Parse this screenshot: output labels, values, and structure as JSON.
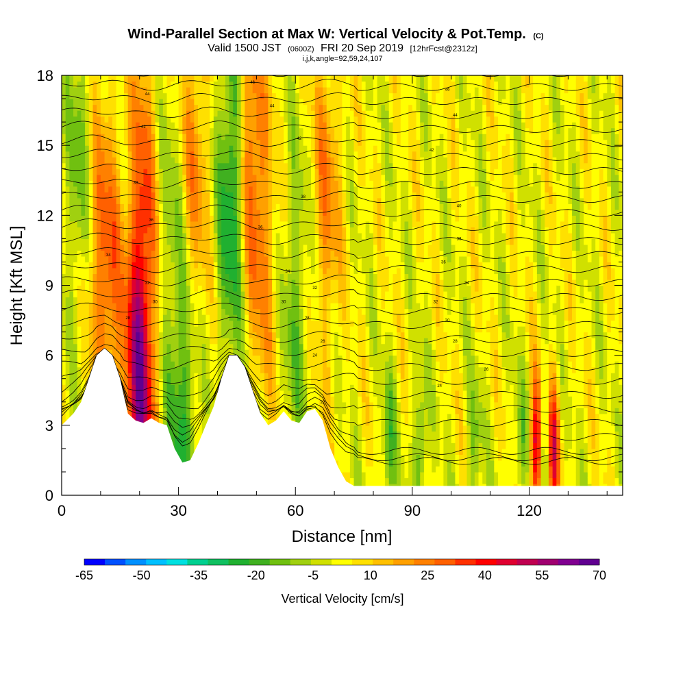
{
  "chart_data": {
    "type": "heatmap",
    "title": "Wind-Parallel Section at Max W: Vertical Velocity & Pot.Temp.",
    "title_units": "(C)",
    "subtitle_main": "Valid 1500 JST",
    "subtitle_utc": "(0600Z)",
    "subtitle_date": "FRI 20 Sep 2019",
    "subtitle_fcst": "[12hrFcst@2312z]",
    "subtitle2": "i,j,k,angle=92,59,24,107",
    "xlabel": "Distance [nm]",
    "ylabel": "Height [Kft MSL]",
    "xlim": [
      0,
      144
    ],
    "ylim": [
      0,
      18
    ],
    "x_ticks": [
      "0",
      "30",
      "60",
      "90",
      "120"
    ],
    "y_ticks": [
      "0",
      "3",
      "6",
      "9",
      "12",
      "15",
      "18"
    ],
    "colorbar_label": "Vertical Velocity [cm/s]",
    "colorbar_ticks": [
      "-65",
      "-50",
      "-35",
      "-20",
      "-5",
      "10",
      "25",
      "40",
      "55",
      "70"
    ],
    "colorbar_colors": [
      "#0000ff",
      "#0050ff",
      "#0090ff",
      "#00c0ff",
      "#00e0e0",
      "#00d090",
      "#10c060",
      "#20b030",
      "#40b020",
      "#70c010",
      "#a0d010",
      "#d0e000",
      "#ffff00",
      "#ffe000",
      "#ffc000",
      "#ffa000",
      "#ff8000",
      "#ff6000",
      "#ff3000",
      "#ff0000",
      "#e00030",
      "#c00050",
      "#a00070",
      "#800090",
      "#600090"
    ],
    "terrain": [
      [
        0,
        3
      ],
      [
        3,
        3.5
      ],
      [
        5,
        4
      ],
      [
        7,
        5
      ],
      [
        9,
        6
      ],
      [
        11,
        6.3
      ],
      [
        13,
        6
      ],
      [
        15,
        5
      ],
      [
        17,
        3.5
      ],
      [
        19,
        3.2
      ],
      [
        21,
        3.1
      ],
      [
        23,
        3.3
      ],
      [
        25,
        3.1
      ],
      [
        27,
        3
      ],
      [
        29,
        2
      ],
      [
        31,
        1.4
      ],
      [
        33,
        1.5
      ],
      [
        35,
        2.2
      ],
      [
        37,
        3
      ],
      [
        39,
        3.8
      ],
      [
        41,
        5
      ],
      [
        43,
        6
      ],
      [
        45,
        6
      ],
      [
        47,
        5.5
      ],
      [
        49,
        4.5
      ],
      [
        51,
        3.5
      ],
      [
        53,
        3
      ],
      [
        55,
        3.2
      ],
      [
        57,
        3.6
      ],
      [
        59,
        3.2
      ],
      [
        61,
        3.1
      ],
      [
        63,
        3.6
      ],
      [
        65,
        3.7
      ],
      [
        67,
        3.2
      ],
      [
        69,
        2
      ],
      [
        71,
        1.2
      ],
      [
        73,
        0.6
      ],
      [
        75,
        0.4
      ],
      [
        80,
        0.4
      ],
      [
        90,
        0.4
      ],
      [
        100,
        0.4
      ],
      [
        110,
        0.4
      ],
      [
        120,
        0.4
      ],
      [
        130,
        0.4
      ],
      [
        140,
        0.4
      ],
      [
        144,
        0.4
      ]
    ],
    "velocity_features": [
      {
        "x": 5,
        "y": 14,
        "w": -20
      },
      {
        "x": 8,
        "y": 12,
        "w": 15
      },
      {
        "x": 12,
        "y": 9,
        "w": 25
      },
      {
        "x": 20,
        "y": 4.5,
        "w": 55
      },
      {
        "x": 21,
        "y": 14,
        "w": 20
      },
      {
        "x": 28,
        "y": 12,
        "w": -10
      },
      {
        "x": 31,
        "y": 3,
        "w": -25
      },
      {
        "x": 34,
        "y": 14,
        "w": 20
      },
      {
        "x": 44,
        "y": 13,
        "w": -35
      },
      {
        "x": 48,
        "y": 15,
        "w": 30
      },
      {
        "x": 52,
        "y": 10,
        "w": 15
      },
      {
        "x": 60,
        "y": 8,
        "w": -15
      },
      {
        "x": 68,
        "y": 13,
        "w": 20
      },
      {
        "x": 84,
        "y": 2,
        "w": -20
      },
      {
        "x": 92,
        "y": 2,
        "w": -20
      },
      {
        "x": 106,
        "y": 2,
        "w": -15
      },
      {
        "x": 122,
        "y": 2,
        "w": 50
      },
      {
        "x": 126,
        "y": 2,
        "w": 45
      },
      {
        "x": 124,
        "y": 2,
        "w": -30
      },
      {
        "x": 118,
        "y": 2,
        "w": -15
      }
    ],
    "contour_labels": [
      {
        "x": 22,
        "y": 17.2,
        "text": "44"
      },
      {
        "x": 21,
        "y": 15.8,
        "text": "42"
      },
      {
        "x": 19,
        "y": 13.4,
        "text": "38"
      },
      {
        "x": 23,
        "y": 11.8,
        "text": "36"
      },
      {
        "x": 12,
        "y": 10.3,
        "text": "34"
      },
      {
        "x": 22,
        "y": 9.1,
        "text": "32"
      },
      {
        "x": 24,
        "y": 8.3,
        "text": "30"
      },
      {
        "x": 17,
        "y": 7.6,
        "text": "28"
      },
      {
        "x": 49,
        "y": 17.7,
        "text": "46"
      },
      {
        "x": 54,
        "y": 16.7,
        "text": "44"
      },
      {
        "x": 61,
        "y": 15.3,
        "text": "42"
      },
      {
        "x": 62,
        "y": 12.8,
        "text": "38"
      },
      {
        "x": 51,
        "y": 11.5,
        "text": "36"
      },
      {
        "x": 58,
        "y": 9.6,
        "text": "34"
      },
      {
        "x": 65,
        "y": 8.9,
        "text": "32"
      },
      {
        "x": 57,
        "y": 8.3,
        "text": "30"
      },
      {
        "x": 63,
        "y": 7.6,
        "text": "28"
      },
      {
        "x": 67,
        "y": 6.6,
        "text": "26"
      },
      {
        "x": 65,
        "y": 6.0,
        "text": "24"
      },
      {
        "x": 67,
        "y": 4.0,
        "text": "22"
      },
      {
        "x": 99,
        "y": 17.4,
        "text": "46"
      },
      {
        "x": 101,
        "y": 16.3,
        "text": "44"
      },
      {
        "x": 95,
        "y": 14.8,
        "text": "42"
      },
      {
        "x": 102,
        "y": 12.4,
        "text": "40"
      },
      {
        "x": 102,
        "y": 11.0,
        "text": "38"
      },
      {
        "x": 98,
        "y": 10.0,
        "text": "36"
      },
      {
        "x": 104,
        "y": 9.1,
        "text": "34"
      },
      {
        "x": 96,
        "y": 8.3,
        "text": "32"
      },
      {
        "x": 99,
        "y": 7.5,
        "text": "30"
      },
      {
        "x": 101,
        "y": 6.6,
        "text": "28"
      },
      {
        "x": 109,
        "y": 5.4,
        "text": "26"
      },
      {
        "x": 97,
        "y": 4.7,
        "text": "24"
      }
    ]
  }
}
